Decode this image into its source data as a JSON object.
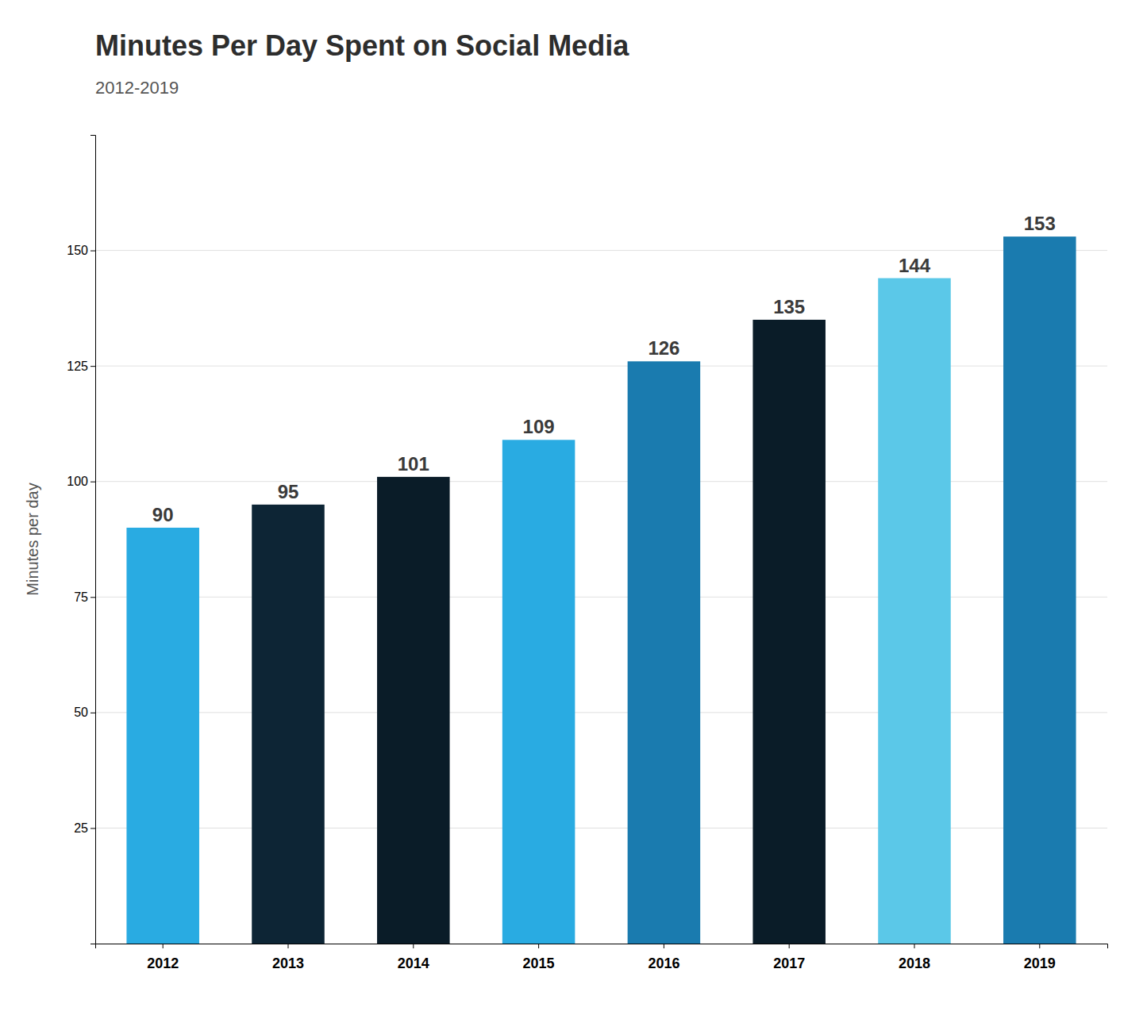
{
  "chart_data": {
    "type": "bar",
    "title": "Minutes Per Day Spent on Social Media",
    "subtitle": "2012-2019",
    "ylabel": "Minutes per day",
    "categories": [
      "2012",
      "2013",
      "2014",
      "2015",
      "2016",
      "2017",
      "2018",
      "2019"
    ],
    "values": [
      90,
      95,
      101,
      109,
      126,
      135,
      144,
      153
    ],
    "colors": [
      "#29ABE2",
      "#0D2535",
      "#0A1C28",
      "#29ABE2",
      "#1A7BAF",
      "#0A1C28",
      "#5BC8E8",
      "#1A7BAF"
    ],
    "ylim": [
      0,
      175
    ],
    "yticks": [
      25,
      50,
      75,
      100,
      125,
      150
    ],
    "grid": true,
    "data_labels": true
  }
}
